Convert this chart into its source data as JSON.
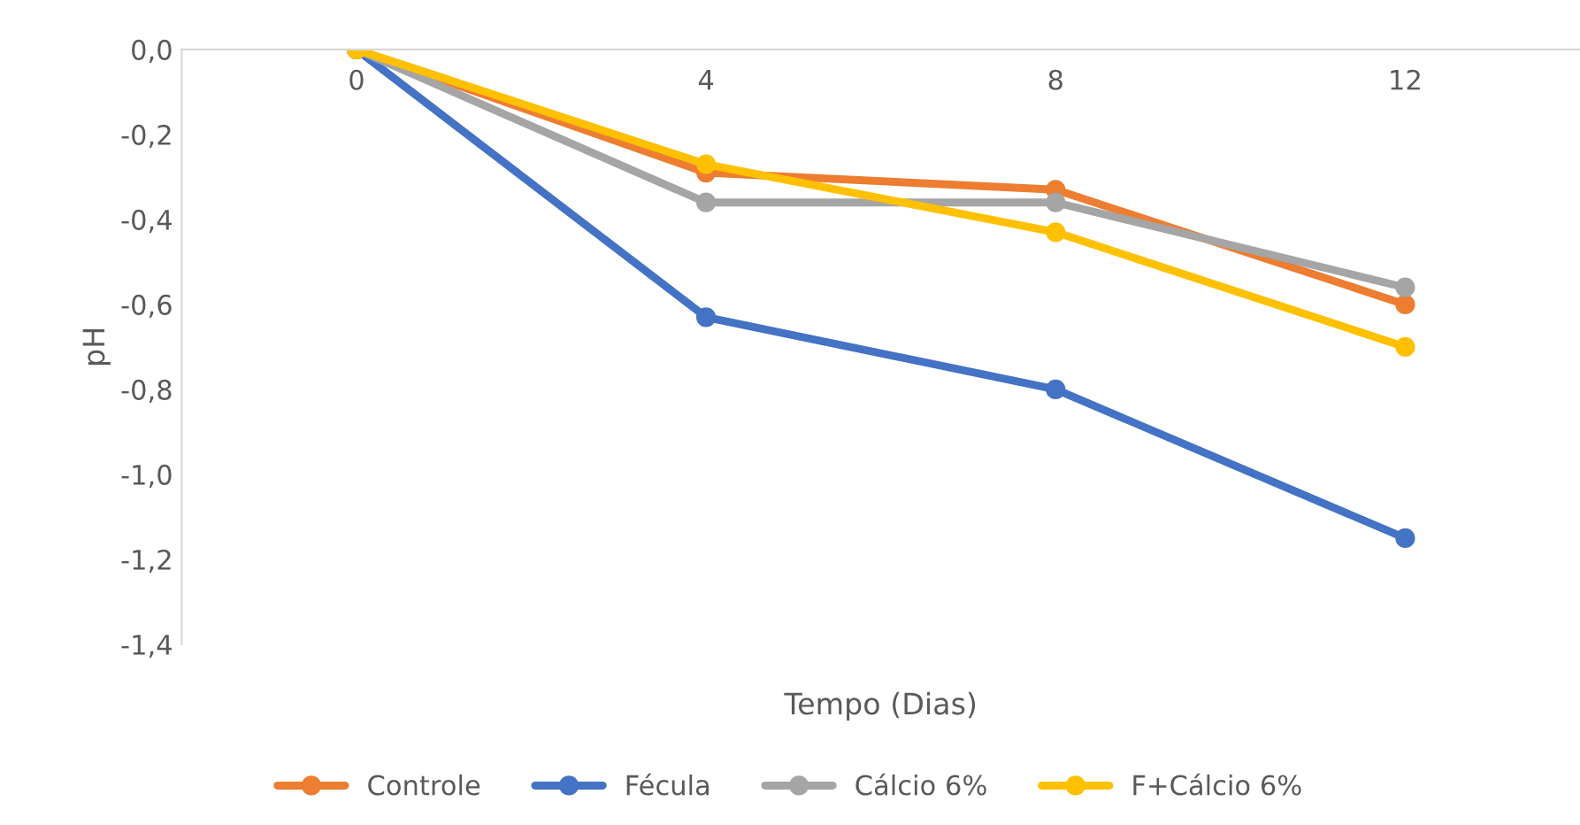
{
  "chart_data": {
    "type": "line",
    "xlabel": "Tempo (Dias)",
    "ylabel": "pH",
    "categories": [
      "0",
      "4",
      "8",
      "12"
    ],
    "series": [
      {
        "name": "Controle",
        "color": "#ed7d31",
        "values": [
          0,
          -0.29,
          -0.33,
          -0.6
        ]
      },
      {
        "name": "Fécula",
        "color": "#4472c4",
        "values": [
          0,
          -0.63,
          -0.8,
          -1.15
        ]
      },
      {
        "name": "Cálcio 6%",
        "color": "#a5a5a5",
        "values": [
          0,
          -0.36,
          -0.36,
          -0.56
        ]
      },
      {
        "name": "F+Cálcio 6%",
        "color": "#ffc000",
        "values": [
          0,
          -0.27,
          -0.43,
          -0.7
        ]
      }
    ],
    "ylim": [
      -1.4,
      0
    ],
    "yticks": [
      {
        "value": 0,
        "label": "0,0"
      },
      {
        "value": -0.2,
        "label": "-0,2"
      },
      {
        "value": -0.4,
        "label": "-0,4"
      },
      {
        "value": -0.6,
        "label": "-0,6"
      },
      {
        "value": -0.8,
        "label": "-0,8"
      },
      {
        "value": -1.0,
        "label": "-1,0"
      },
      {
        "value": -1.2,
        "label": "-1,2"
      },
      {
        "value": -1.4,
        "label": "-1,4"
      }
    ],
    "grid": false,
    "legend": "bottom",
    "marker": "circle",
    "line_style": "solid"
  }
}
